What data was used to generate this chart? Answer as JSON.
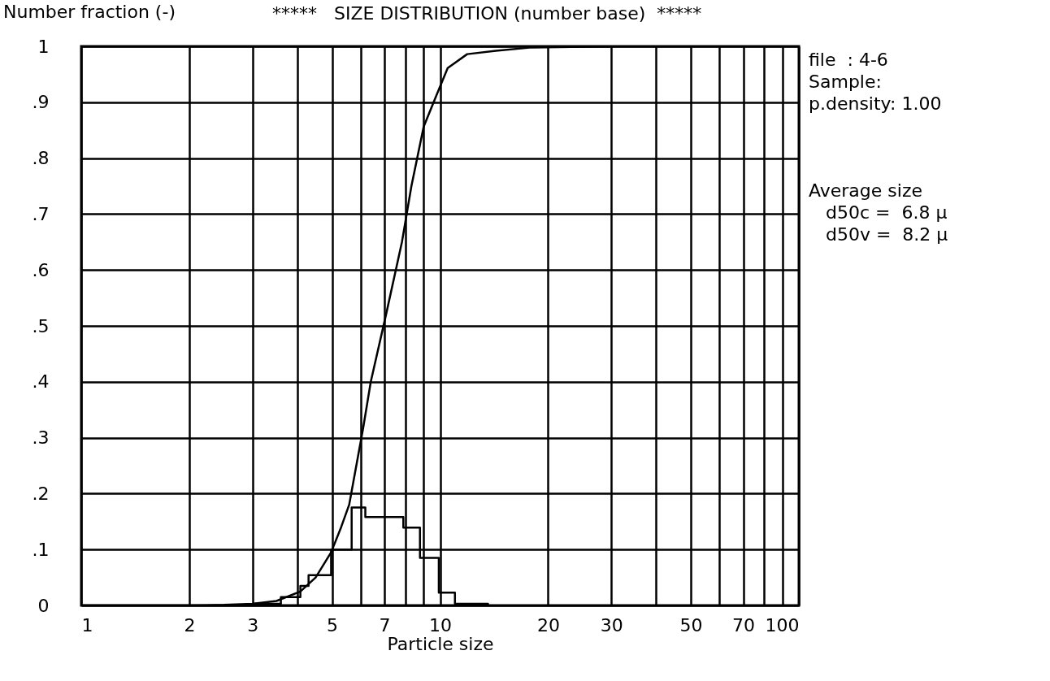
{
  "chart_data": {
    "type": "line",
    "title": "*****   SIZE DISTRIBUTION (number base)  *****",
    "ylabel": "Number fraction (-)",
    "xlabel": "Particle size",
    "log": "x",
    "grid": true,
    "xlim": [
      1,
      100
    ],
    "xticks": [
      1,
      2,
      3,
      {
        "value": 4,
        "label": null
      },
      5,
      {
        "value": 6,
        "label": null
      },
      7,
      {
        "value": 8,
        "label": null
      },
      {
        "value": 9,
        "label": null
      },
      10,
      20,
      30,
      {
        "value": 40,
        "label": null
      },
      50,
      {
        "value": 60,
        "label": null
      },
      70,
      {
        "value": 80,
        "label": null
      },
      {
        "value": 90,
        "label": null
      },
      100
    ],
    "ylim": [
      0,
      1
    ],
    "yticks": [
      0,
      {
        "value": 0.1,
        "label": ".1"
      },
      {
        "value": 0.2,
        "label": ".2"
      },
      {
        "value": 0.3,
        "label": ".3"
      },
      {
        "value": 0.4,
        "label": ".4"
      },
      {
        "value": 0.5,
        "label": ".5"
      },
      {
        "value": 0.6,
        "label": ".6"
      },
      {
        "value": 0.7,
        "label": ".7"
      },
      {
        "value": 0.8,
        "label": ".8"
      },
      {
        "value": 0.9,
        "label": ".9"
      },
      1
    ],
    "series": [
      {
        "type": "line",
        "color": "#000000",
        "x": [
          1,
          2,
          2.5,
          3,
          3.5,
          4.08,
          4.5,
          4.97,
          5.3,
          5.58,
          6.1,
          6.41,
          7.08,
          7.83,
          8.32,
          9.0,
          9.75,
          10.5,
          11.9,
          14.3,
          18,
          30
        ],
        "values": [
          0,
          0,
          0.001,
          0.003,
          0.008,
          0.025,
          0.05,
          0.095,
          0.14,
          0.18,
          0.316,
          0.4,
          0.522,
          0.65,
          0.75,
          0.856,
          0.911,
          0.961,
          0.986,
          0.992,
          0.998,
          1
        ]
      },
      {
        "type": "step",
        "color": "#000000",
        "x": [
          3.0,
          3.6,
          4.08,
          4.3,
          4.97,
          5.67,
          6.19,
          7.9,
          8.79,
          9.92,
          11.0,
          13.6
        ],
        "values": [
          0.003,
          0.015,
          0.035,
          0.054,
          0.1,
          0.175,
          0.158,
          0.139,
          0.085,
          0.023,
          0.003,
          0
        ]
      }
    ],
    "annotations": [
      "file  : 4-6",
      "Sample:",
      "p.density: 1.00",
      "Average size",
      "   d50c =  6.8 µ",
      "   d50v =  8.2 µ"
    ]
  }
}
